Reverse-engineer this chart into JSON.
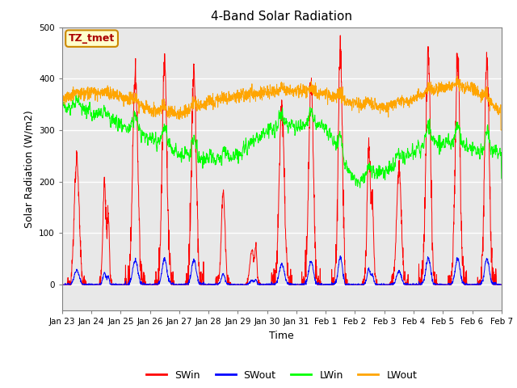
{
  "title": "4-Band Solar Radiation",
  "xlabel": "Time",
  "ylabel": "Solar Radiation (W/m2)",
  "ylim": [
    -50,
    500
  ],
  "plot_bg_color": "#e8e8e8",
  "annotation_text": "TZ_tmet",
  "annotation_bg": "#ffffcc",
  "annotation_border": "#cc8800",
  "annotation_text_color": "#aa0000",
  "x_tick_labels": [
    "Jan 23",
    "Jan 24",
    "Jan 25",
    "Jan 26",
    "Jan 27",
    "Jan 28",
    "Jan 29",
    "Jan 30",
    "Jan 31",
    "Feb 1",
    "Feb 2",
    "Feb 3",
    "Feb 4",
    "Feb 5",
    "Feb 6",
    "Feb 7"
  ],
  "num_days": 15,
  "pts_per_day": 144,
  "figsize": [
    6.4,
    4.8
  ],
  "dpi": 100
}
